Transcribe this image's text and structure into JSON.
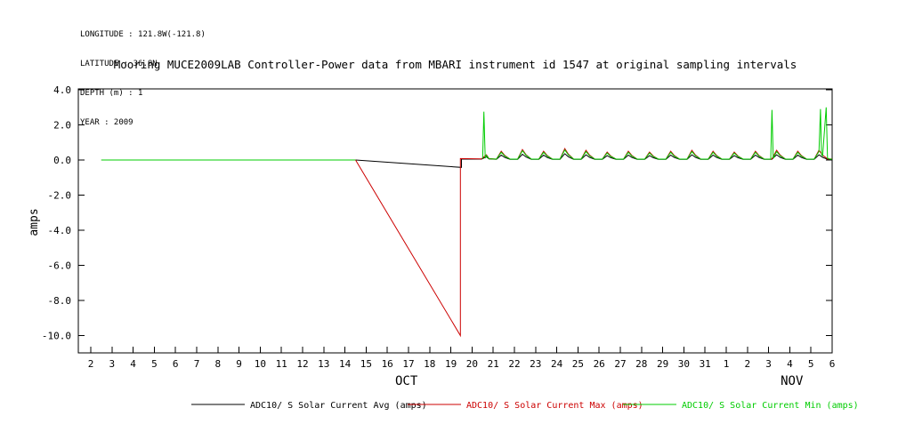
{
  "meta": {
    "longitude_line": "LONGITUDE : 121.8W(-121.8)",
    "latitude_line": "LATITUDE : 36.8N",
    "depth_line": "DEPTH (m) : 1",
    "year_line": "YEAR : 2009"
  },
  "title": "Mooring MUCE2009LAB Controller-Power data from MBARI instrument id 1547 at original sampling intervals",
  "legend": [
    {
      "label": "ADC10/ S Solar Current Avg (amps)",
      "color": "#000000"
    },
    {
      "label": "ADC10/ S Solar Current Max (amps)",
      "color": "#cc0000"
    },
    {
      "label": "ADC10/ S Solar Current Min (amps)",
      "color": "#00cc00"
    }
  ],
  "chart_data": {
    "type": "line",
    "title": "Mooring MUCE2009LAB Controller-Power data from MBARI instrument id 1547 at original sampling intervals",
    "xlabel": "",
    "ylabel": "amps",
    "ylim": [
      -11,
      4.1
    ],
    "xlim": [
      1.4,
      37.0
    ],
    "grid": false,
    "legend_position": "bottom",
    "yticks": {
      "values": [
        4,
        2,
        0,
        -2,
        -4,
        -6,
        -8,
        -10
      ],
      "labels": [
        "4.0",
        "2.0",
        "0.0",
        "-2.0",
        "-4.0",
        "-6.0",
        "-8.0",
        "-10.0"
      ]
    },
    "xticks": {
      "start_value": 2,
      "labels": [
        "2",
        "3",
        "4",
        "5",
        "6",
        "7",
        "8",
        "9",
        "10",
        "11",
        "12",
        "13",
        "14",
        "15",
        "16",
        "17",
        "18",
        "19",
        "20",
        "21",
        "22",
        "23",
        "24",
        "25",
        "26",
        "27",
        "28",
        "29",
        "30",
        "31",
        "1",
        "2",
        "3",
        "4",
        "5",
        "6"
      ]
    },
    "months": [
      {
        "label": "OCT",
        "x": 16.9
      },
      {
        "label": "NOV",
        "x": 35.1
      }
    ],
    "series": [
      {
        "name": "ADC10/ S Solar Current Avg (amps)",
        "color": "#000000",
        "segments": [
          [
            [
              2.5,
              0
            ],
            [
              14.5,
              0
            ],
            [
              19.5,
              -0.42
            ],
            [
              19.5,
              0.05
            ],
            [
              20.45,
              0.05
            ],
            [
              20.68,
              0.18
            ],
            [
              20.8,
              0.06
            ],
            [
              21.15,
              0.04
            ],
            [
              21.38,
              0.28
            ],
            [
              21.55,
              0.14
            ],
            [
              21.8,
              0.04
            ],
            [
              22.15,
              0.04
            ],
            [
              22.38,
              0.33
            ],
            [
              22.55,
              0.17
            ],
            [
              22.8,
              0.04
            ],
            [
              23.15,
              0.04
            ],
            [
              23.38,
              0.28
            ],
            [
              23.55,
              0.14
            ],
            [
              23.8,
              0.04
            ],
            [
              24.15,
              0.04
            ],
            [
              24.38,
              0.36
            ],
            [
              24.55,
              0.18
            ],
            [
              24.8,
              0.04
            ],
            [
              25.15,
              0.04
            ],
            [
              25.38,
              0.3
            ],
            [
              25.55,
              0.15
            ],
            [
              25.8,
              0.04
            ],
            [
              26.15,
              0.04
            ],
            [
              26.38,
              0.25
            ],
            [
              26.55,
              0.13
            ],
            [
              26.8,
              0.04
            ],
            [
              27.15,
              0.04
            ],
            [
              27.38,
              0.28
            ],
            [
              27.55,
              0.14
            ],
            [
              27.8,
              0.04
            ],
            [
              28.15,
              0.04
            ],
            [
              28.38,
              0.25
            ],
            [
              28.55,
              0.13
            ],
            [
              28.8,
              0.04
            ],
            [
              29.15,
              0.04
            ],
            [
              29.38,
              0.28
            ],
            [
              29.55,
              0.14
            ],
            [
              29.8,
              0.04
            ],
            [
              30.15,
              0.04
            ],
            [
              30.38,
              0.3
            ],
            [
              30.55,
              0.15
            ],
            [
              30.8,
              0.04
            ],
            [
              31.15,
              0.04
            ],
            [
              31.38,
              0.28
            ],
            [
              31.55,
              0.14
            ],
            [
              31.8,
              0.04
            ],
            [
              32.15,
              0.04
            ],
            [
              32.38,
              0.25
            ],
            [
              32.55,
              0.13
            ],
            [
              32.8,
              0.04
            ],
            [
              33.15,
              0.04
            ],
            [
              33.38,
              0.28
            ],
            [
              33.55,
              0.14
            ],
            [
              33.8,
              0.04
            ],
            [
              34.15,
              0.04
            ],
            [
              34.38,
              0.3
            ],
            [
              34.55,
              0.15
            ],
            [
              34.8,
              0.04
            ],
            [
              35.15,
              0.04
            ],
            [
              35.38,
              0.28
            ],
            [
              35.55,
              0.14
            ],
            [
              35.8,
              0.04
            ],
            [
              36.15,
              0.04
            ],
            [
              36.38,
              0.3
            ],
            [
              36.55,
              0.15
            ],
            [
              36.8,
              0.04
            ],
            [
              37.0,
              0.05
            ]
          ]
        ]
      },
      {
        "name": "ADC10/ S Solar Current Max (amps)",
        "color": "#cc0000",
        "segments": [
          [
            [
              2.5,
              0
            ],
            [
              14.5,
              0
            ],
            [
              19.45,
              -10.0
            ],
            [
              19.45,
              0.08
            ],
            [
              20.45,
              0.06
            ],
            [
              20.68,
              0.3
            ],
            [
              20.8,
              0.08
            ],
            [
              21.15,
              0.05
            ],
            [
              21.38,
              0.5
            ],
            [
              21.55,
              0.25
            ],
            [
              21.8,
              0.05
            ],
            [
              22.15,
              0.05
            ],
            [
              22.38,
              0.6
            ],
            [
              22.55,
              0.3
            ],
            [
              22.8,
              0.05
            ],
            [
              23.15,
              0.05
            ],
            [
              23.38,
              0.5
            ],
            [
              23.55,
              0.25
            ],
            [
              23.8,
              0.05
            ],
            [
              24.15,
              0.05
            ],
            [
              24.38,
              0.65
            ],
            [
              24.55,
              0.33
            ],
            [
              24.8,
              0.05
            ],
            [
              25.15,
              0.05
            ],
            [
              25.38,
              0.55
            ],
            [
              25.55,
              0.28
            ],
            [
              25.8,
              0.05
            ],
            [
              26.15,
              0.05
            ],
            [
              26.38,
              0.45
            ],
            [
              26.55,
              0.23
            ],
            [
              26.8,
              0.05
            ],
            [
              27.15,
              0.05
            ],
            [
              27.38,
              0.5
            ],
            [
              27.55,
              0.25
            ],
            [
              27.8,
              0.05
            ],
            [
              28.15,
              0.05
            ],
            [
              28.38,
              0.45
            ],
            [
              28.55,
              0.23
            ],
            [
              28.8,
              0.05
            ],
            [
              29.15,
              0.05
            ],
            [
              29.38,
              0.5
            ],
            [
              29.55,
              0.25
            ],
            [
              29.8,
              0.05
            ],
            [
              30.15,
              0.05
            ],
            [
              30.38,
              0.55
            ],
            [
              30.55,
              0.28
            ],
            [
              30.8,
              0.05
            ],
            [
              31.15,
              0.05
            ],
            [
              31.38,
              0.5
            ],
            [
              31.55,
              0.25
            ],
            [
              31.8,
              0.05
            ],
            [
              32.15,
              0.05
            ],
            [
              32.38,
              0.45
            ],
            [
              32.55,
              0.23
            ],
            [
              32.8,
              0.05
            ],
            [
              33.15,
              0.05
            ],
            [
              33.38,
              0.5
            ],
            [
              33.55,
              0.25
            ],
            [
              33.8,
              0.05
            ],
            [
              34.15,
              0.05
            ],
            [
              34.38,
              0.55
            ],
            [
              34.55,
              0.28
            ],
            [
              34.8,
              0.05
            ],
            [
              35.15,
              0.05
            ],
            [
              35.38,
              0.5
            ],
            [
              35.55,
              0.25
            ],
            [
              35.8,
              0.05
            ],
            [
              36.15,
              0.05
            ],
            [
              36.38,
              0.55
            ],
            [
              36.55,
              0.28
            ],
            [
              36.8,
              0.05
            ],
            [
              37.0,
              0.06
            ]
          ]
        ]
      },
      {
        "name": "ADC10/ S Solar Current Min (amps)",
        "color": "#00cc00",
        "segments": [
          [
            [
              2.5,
              0
            ],
            [
              14.5,
              0
            ]
          ],
          [
            [
              20.5,
              0.06
            ],
            [
              20.56,
              2.75
            ],
            [
              20.62,
              0.1
            ],
            [
              20.68,
              0.26
            ],
            [
              20.8,
              0.07
            ],
            [
              21.15,
              0.05
            ],
            [
              21.38,
              0.44
            ],
            [
              21.55,
              0.22
            ],
            [
              21.8,
              0.05
            ],
            [
              22.15,
              0.05
            ],
            [
              22.38,
              0.53
            ],
            [
              22.55,
              0.27
            ],
            [
              22.8,
              0.05
            ],
            [
              23.15,
              0.05
            ],
            [
              23.38,
              0.44
            ],
            [
              23.55,
              0.22
            ],
            [
              23.8,
              0.05
            ],
            [
              24.15,
              0.05
            ],
            [
              24.38,
              0.57
            ],
            [
              24.55,
              0.29
            ],
            [
              24.8,
              0.05
            ],
            [
              25.15,
              0.05
            ],
            [
              25.38,
              0.48
            ],
            [
              25.55,
              0.24
            ],
            [
              25.8,
              0.05
            ],
            [
              26.15,
              0.05
            ],
            [
              26.38,
              0.4
            ],
            [
              26.55,
              0.2
            ],
            [
              26.8,
              0.05
            ],
            [
              27.15,
              0.05
            ],
            [
              27.38,
              0.44
            ],
            [
              27.55,
              0.22
            ],
            [
              27.8,
              0.05
            ],
            [
              28.15,
              0.05
            ],
            [
              28.38,
              0.4
            ],
            [
              28.55,
              0.2
            ],
            [
              28.8,
              0.05
            ],
            [
              29.15,
              0.05
            ],
            [
              29.38,
              0.44
            ],
            [
              29.55,
              0.22
            ],
            [
              29.8,
              0.05
            ],
            [
              30.15,
              0.05
            ],
            [
              30.38,
              0.48
            ],
            [
              30.55,
              0.24
            ],
            [
              30.8,
              0.05
            ],
            [
              31.15,
              0.05
            ],
            [
              31.38,
              0.44
            ],
            [
              31.55,
              0.22
            ],
            [
              31.8,
              0.05
            ],
            [
              32.15,
              0.05
            ],
            [
              32.38,
              0.4
            ],
            [
              32.55,
              0.2
            ],
            [
              32.8,
              0.05
            ],
            [
              33.15,
              0.05
            ],
            [
              33.38,
              0.44
            ],
            [
              33.55,
              0.22
            ],
            [
              33.8,
              0.05
            ],
            [
              34.1,
              0.05
            ],
            [
              34.16,
              2.85
            ],
            [
              34.22,
              0.1
            ],
            [
              34.38,
              0.48
            ],
            [
              34.55,
              0.24
            ],
            [
              34.8,
              0.05
            ],
            [
              35.15,
              0.05
            ],
            [
              35.38,
              0.44
            ],
            [
              35.55,
              0.22
            ],
            [
              35.8,
              0.05
            ],
            [
              36.15,
              0.05
            ],
            [
              36.38,
              0.48
            ],
            [
              36.45,
              2.9
            ],
            [
              36.5,
              0.3
            ],
            [
              36.55,
              0.24
            ],
            [
              36.72,
              3.0
            ],
            [
              36.78,
              0.1
            ],
            [
              36.9,
              0.05
            ],
            [
              37.0,
              0.05
            ]
          ]
        ]
      }
    ]
  }
}
